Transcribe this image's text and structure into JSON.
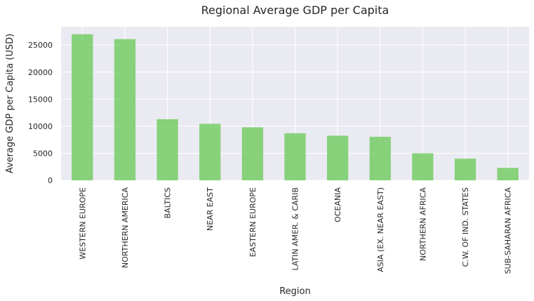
{
  "chart_data": {
    "type": "bar",
    "title": "Regional Average GDP per Capita",
    "xlabel": "Region",
    "ylabel": "Average GDP per Capita (USD)",
    "categories": [
      "WESTERN EUROPE",
      "NORTHERN AMERICA",
      "BALTICS",
      "NEAR EAST",
      "EASTERN EUROPE",
      "LATIN AMER. & CARIB",
      "OCEANIA",
      "ASIA (EX. NEAR EAST)",
      "NORTHERN AFRICA",
      "C.W. OF IND. STATES",
      "SUB-SAHARAN AFRICA"
    ],
    "values": [
      27000,
      26100,
      11300,
      10450,
      9800,
      8700,
      8250,
      8050,
      5000,
      4000,
      2300
    ],
    "ylim": [
      0,
      28400
    ],
    "yticks": [
      0,
      5000,
      10000,
      15000,
      20000,
      25000
    ],
    "grid": true,
    "bar_color": "#77cc66",
    "background_color": "#eaeaf2",
    "grid_color": "#ffffff"
  }
}
